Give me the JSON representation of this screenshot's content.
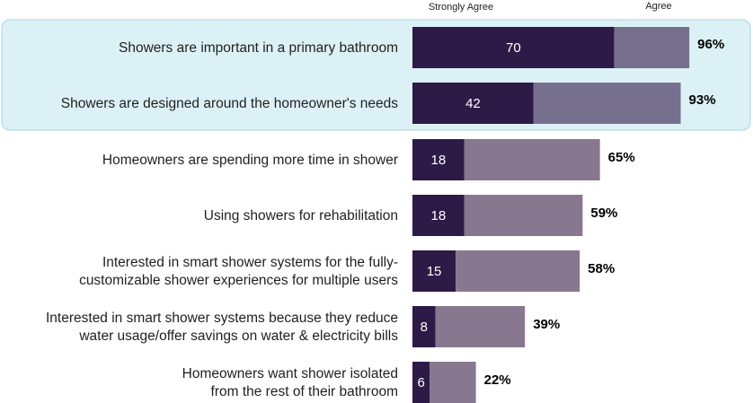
{
  "chart_data": {
    "type": "bar",
    "orientation": "horizontal",
    "stacked": true,
    "legend_position": "top",
    "xlim": [
      0,
      100
    ],
    "grid": false,
    "legend": [
      "Strongly Agree",
      "Agree"
    ],
    "highlight_rows": [
      0,
      1
    ],
    "categories": [
      [
        "Showers are important in a primary bathroom"
      ],
      [
        "Showers are designed around the homeowner's needs"
      ],
      [
        "Homeowners are spending more time in shower"
      ],
      [
        "Using showers for rehabilitation"
      ],
      [
        "Interested in smart shower systems for the fully-",
        "customizable shower experiences for multiple users"
      ],
      [
        "Interested in smart shower systems because they reduce",
        "water usage/offer savings on water & electricity bills"
      ],
      [
        "Homeowners want shower isolated",
        "from the rest of their bathroom"
      ]
    ],
    "series": [
      {
        "name": "Strongly Agree",
        "values": [
          70,
          42,
          18,
          18,
          15,
          8,
          6
        ],
        "value_labels": [
          "70",
          "42",
          "18",
          "18",
          "15",
          "8",
          "6"
        ]
      },
      {
        "name": "Agree",
        "values": [
          26,
          51,
          47,
          41,
          43,
          31,
          16
        ]
      }
    ],
    "totals": [
      "96%",
      "93%",
      "65%",
      "59%",
      "58%",
      "39%",
      "22%"
    ],
    "colors": {
      "strongly_agree": "#2d1a46",
      "agree_highlight": "#76708e",
      "agree": "#87778f",
      "highlight_bg": "#dcf1f6",
      "highlight_border": "#a6d3e1"
    }
  }
}
